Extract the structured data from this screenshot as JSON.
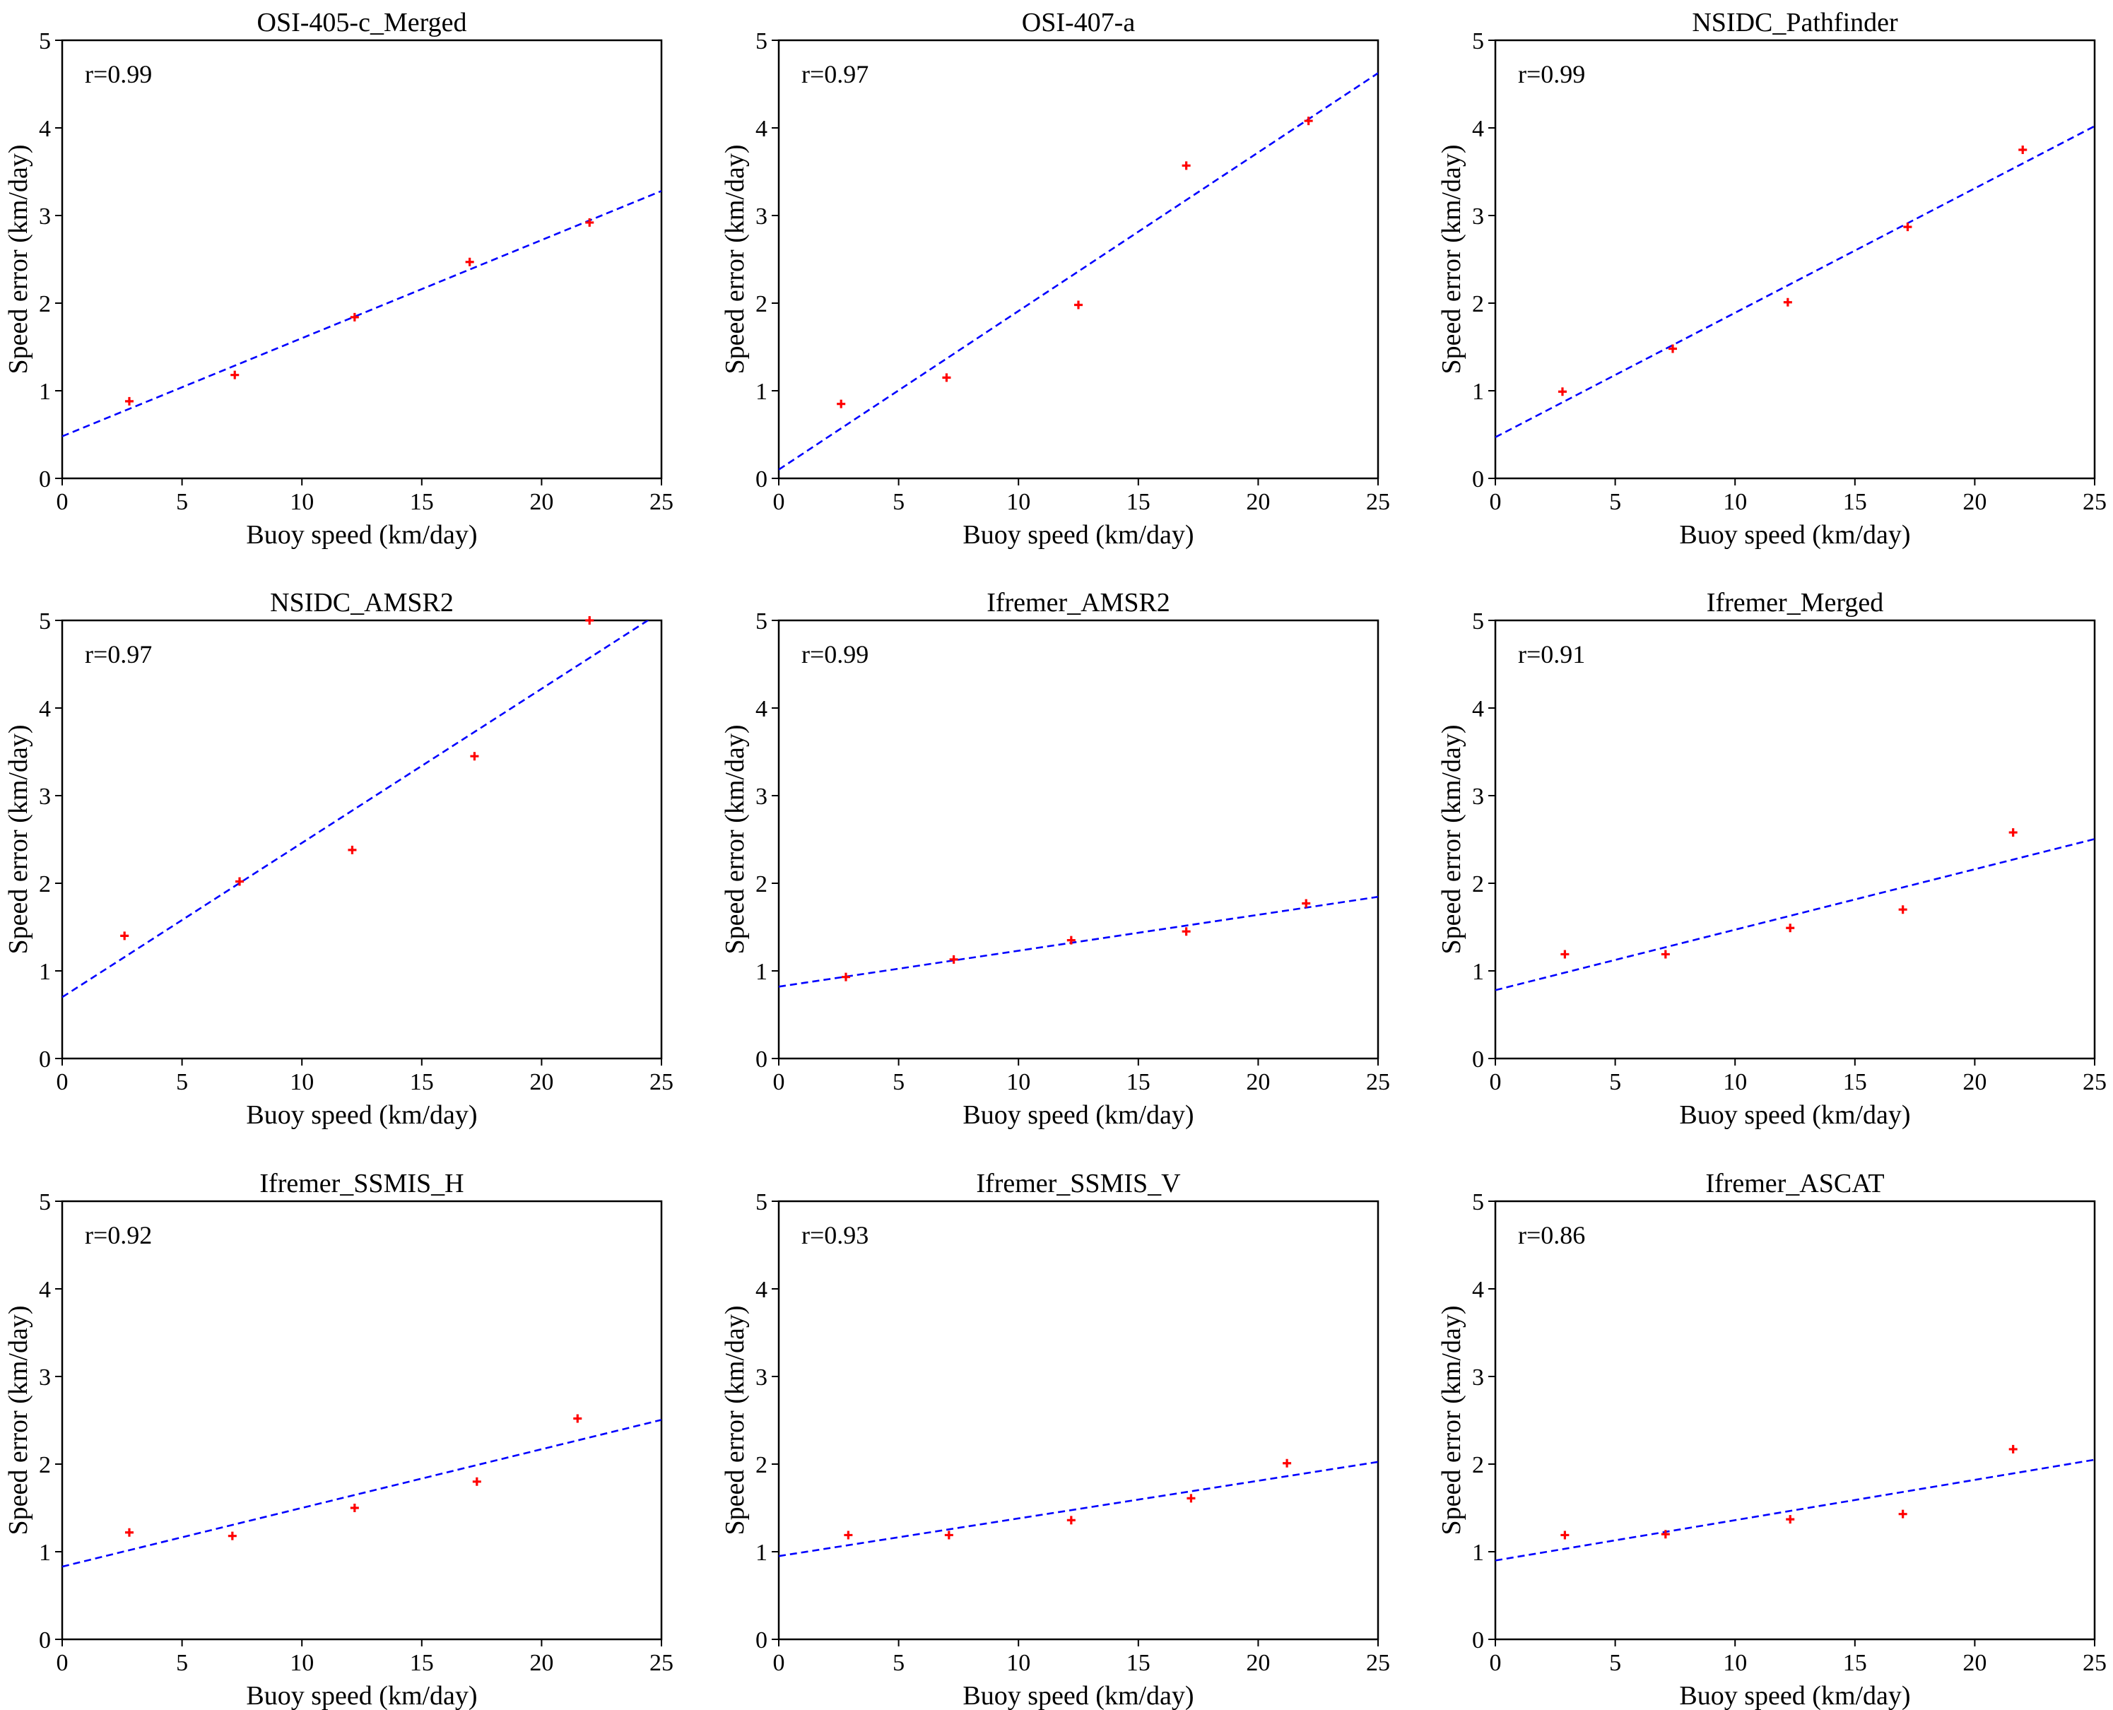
{
  "colors": {
    "points": "#ff0000",
    "fit_line": "#0000ff",
    "axes": "#000000"
  },
  "chart_data": [
    {
      "type": "scatter",
      "title": "OSI-405-c_Merged",
      "annotation": "r=0.99",
      "xlabel": "Buoy speed (km/day)",
      "ylabel": "Speed error (km/day)",
      "xlim": [
        0,
        25
      ],
      "ylim": [
        0,
        5
      ],
      "xticks": [
        "0",
        "5",
        "10",
        "15",
        "20",
        "25"
      ],
      "yticks": [
        "0",
        "1",
        "2",
        "3",
        "4",
        "5"
      ],
      "x": [
        2.8,
        7.2,
        12.2,
        17.0,
        22.0
      ],
      "y": [
        0.88,
        1.18,
        1.84,
        2.47,
        2.92
      ],
      "fit": {
        "intercept": 0.48,
        "slope": 0.112
      }
    },
    {
      "type": "scatter",
      "title": "OSI-407-a",
      "annotation": "r=0.97",
      "xlabel": "Buoy speed (km/day)",
      "ylabel": "Speed error (km/day)",
      "xlim": [
        0,
        25
      ],
      "ylim": [
        0,
        5
      ],
      "xticks": [
        "0",
        "5",
        "10",
        "15",
        "20",
        "25"
      ],
      "yticks": [
        "0",
        "1",
        "2",
        "3",
        "4",
        "5"
      ],
      "x": [
        2.6,
        7.0,
        12.5,
        17.0,
        22.1
      ],
      "y": [
        0.85,
        1.15,
        1.98,
        3.57,
        4.08
      ],
      "fit": {
        "intercept": 0.1,
        "slope": 0.181
      }
    },
    {
      "type": "scatter",
      "title": "NSIDC_Pathfinder",
      "annotation": "r=0.99",
      "xlabel": "Buoy speed (km/day)",
      "ylabel": "Speed error (km/day)",
      "xlim": [
        0,
        25
      ],
      "ylim": [
        0,
        5
      ],
      "xticks": [
        "0",
        "5",
        "10",
        "15",
        "20",
        "25"
      ],
      "yticks": [
        "0",
        "1",
        "2",
        "3",
        "4",
        "5"
      ],
      "x": [
        2.8,
        7.4,
        12.2,
        17.2,
        22.0
      ],
      "y": [
        0.99,
        1.48,
        2.01,
        2.87,
        3.75
      ],
      "fit": {
        "intercept": 0.47,
        "slope": 0.142
      }
    },
    {
      "type": "scatter",
      "title": "NSIDC_AMSR2",
      "annotation": "r=0.97",
      "xlabel": "Buoy speed (km/day)",
      "ylabel": "Speed error (km/day)",
      "xlim": [
        0,
        25
      ],
      "ylim": [
        0,
        5
      ],
      "xticks": [
        "0",
        "5",
        "10",
        "15",
        "20",
        "25"
      ],
      "yticks": [
        "0",
        "1",
        "2",
        "3",
        "4",
        "5"
      ],
      "x": [
        2.6,
        7.4,
        12.1,
        17.2,
        22.0
      ],
      "y": [
        1.4,
        2.02,
        2.38,
        3.45,
        5.0
      ],
      "fit": {
        "intercept": 0.7,
        "slope": 0.176
      }
    },
    {
      "type": "scatter",
      "title": "Ifremer_AMSR2",
      "annotation": "r=0.99",
      "xlabel": "Buoy speed (km/day)",
      "ylabel": "Speed error (km/day)",
      "xlim": [
        0,
        25
      ],
      "ylim": [
        0,
        5
      ],
      "xticks": [
        "0",
        "5",
        "10",
        "15",
        "20",
        "25"
      ],
      "yticks": [
        "0",
        "1",
        "2",
        "3",
        "4",
        "5"
      ],
      "x": [
        2.8,
        7.3,
        12.2,
        17.0,
        22.0
      ],
      "y": [
        0.93,
        1.13,
        1.35,
        1.45,
        1.77
      ],
      "fit": {
        "intercept": 0.82,
        "slope": 0.041
      }
    },
    {
      "type": "scatter",
      "title": "Ifremer_Merged",
      "annotation": "r=0.91",
      "xlabel": "Buoy speed (km/day)",
      "ylabel": "Speed error (km/day)",
      "xlim": [
        0,
        25
      ],
      "ylim": [
        0,
        5
      ],
      "xticks": [
        "0",
        "5",
        "10",
        "15",
        "20",
        "25"
      ],
      "yticks": [
        "0",
        "1",
        "2",
        "3",
        "4",
        "5"
      ],
      "x": [
        2.9,
        7.1,
        12.3,
        17.0,
        21.6
      ],
      "y": [
        1.19,
        1.19,
        1.49,
        1.7,
        2.58
      ],
      "fit": {
        "intercept": 0.78,
        "slope": 0.069
      }
    },
    {
      "type": "scatter",
      "title": "Ifremer_SSMIS_H",
      "annotation": "r=0.92",
      "xlabel": "Buoy speed (km/day)",
      "ylabel": "Speed error (km/day)",
      "xlim": [
        0,
        25
      ],
      "ylim": [
        0,
        5
      ],
      "xticks": [
        "0",
        "5",
        "10",
        "15",
        "20",
        "25"
      ],
      "yticks": [
        "0",
        "1",
        "2",
        "3",
        "4",
        "5"
      ],
      "x": [
        2.8,
        7.1,
        12.2,
        17.3,
        21.5
      ],
      "y": [
        1.22,
        1.18,
        1.5,
        1.8,
        2.52
      ],
      "fit": {
        "intercept": 0.83,
        "slope": 0.067
      }
    },
    {
      "type": "scatter",
      "title": "Ifremer_SSMIS_V",
      "annotation": "r=0.93",
      "xlabel": "Buoy speed (km/day)",
      "ylabel": "Speed error (km/day)",
      "xlim": [
        0,
        25
      ],
      "ylim": [
        0,
        5
      ],
      "xticks": [
        "0",
        "5",
        "10",
        "15",
        "20",
        "25"
      ],
      "yticks": [
        "0",
        "1",
        "2",
        "3",
        "4",
        "5"
      ],
      "x": [
        2.9,
        7.1,
        12.2,
        17.2,
        21.2
      ],
      "y": [
        1.19,
        1.19,
        1.36,
        1.61,
        2.01
      ],
      "fit": {
        "intercept": 0.95,
        "slope": 0.043
      }
    },
    {
      "type": "scatter",
      "title": "Ifremer_ASCAT",
      "annotation": "r=0.86",
      "xlabel": "Buoy speed (km/day)",
      "ylabel": "Speed error (km/day)",
      "xlim": [
        0,
        25
      ],
      "ylim": [
        0,
        5
      ],
      "xticks": [
        "0",
        "5",
        "10",
        "15",
        "20",
        "25"
      ],
      "yticks": [
        "0",
        "1",
        "2",
        "3",
        "4",
        "5"
      ],
      "x": [
        2.9,
        7.1,
        12.3,
        17.0,
        21.6
      ],
      "y": [
        1.19,
        1.2,
        1.37,
        1.43,
        2.17
      ],
      "fit": {
        "intercept": 0.9,
        "slope": 0.046
      }
    }
  ]
}
